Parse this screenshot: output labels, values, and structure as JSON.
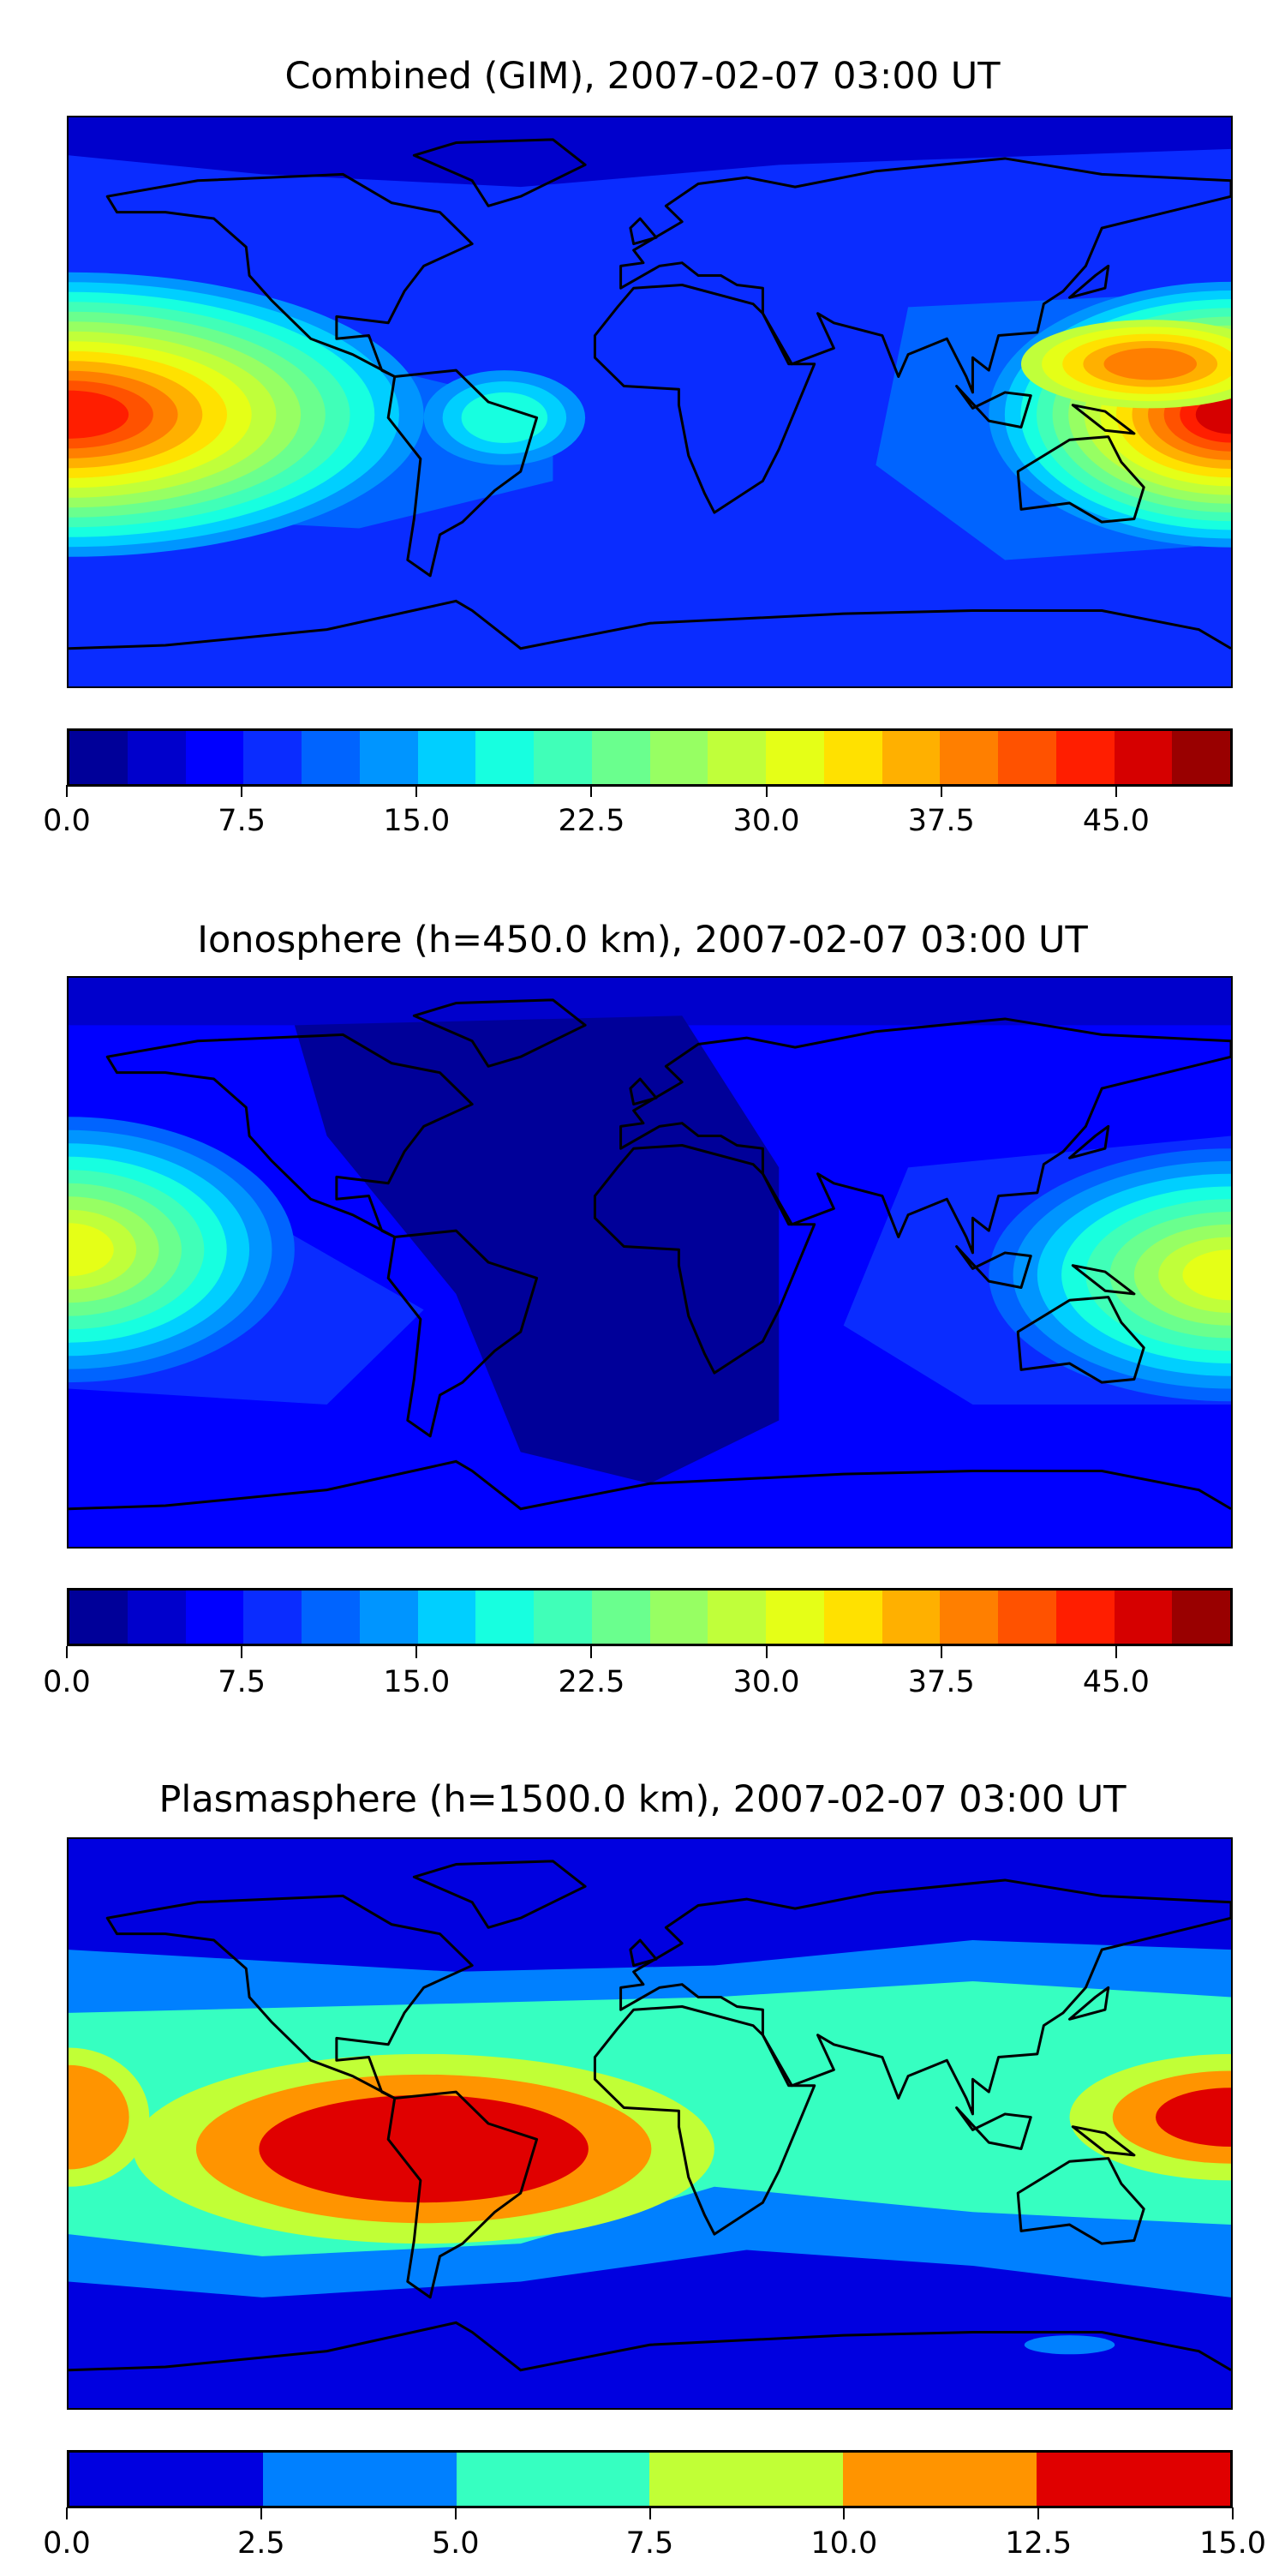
{
  "chart_data": [
    {
      "type": "heatmap",
      "title": "Combined (GIM), 2007-02-07 03:00 UT",
      "projection": "equirectangular world map with coastlines",
      "colorbar": {
        "levels": [
          0,
          2.5,
          5,
          7.5,
          10,
          12.5,
          15,
          17.5,
          20,
          22.5,
          25,
          27.5,
          30,
          32.5,
          35,
          37.5,
          40,
          42.5,
          45,
          47.5,
          50
        ],
        "colors": [
          "#000099",
          "#0000cc",
          "#0000ff",
          "#0a2cff",
          "#0064ff",
          "#0095ff",
          "#00cfff",
          "#17ffe0",
          "#40ffb8",
          "#6aff8e",
          "#97ff63",
          "#c0ff3a",
          "#e5ff17",
          "#ffe100",
          "#ffb000",
          "#ff7f00",
          "#ff5200",
          "#ff1e00",
          "#d60000",
          "#990000"
        ],
        "ticks": [
          "0.0",
          "7.5",
          "15.0",
          "22.5",
          "30.0",
          "37.5",
          "45.0"
        ],
        "tick_values": [
          0,
          7.5,
          15,
          22.5,
          30,
          37.5,
          45
        ],
        "range": [
          0,
          50
        ]
      }
    },
    {
      "type": "heatmap",
      "title": "Ionosphere  (h=450.0 km), 2007-02-07 03:00 UT",
      "projection": "equirectangular world map with coastlines",
      "colorbar": {
        "levels": [
          0,
          2.5,
          5,
          7.5,
          10,
          12.5,
          15,
          17.5,
          20,
          22.5,
          25,
          27.5,
          30,
          32.5,
          35,
          37.5,
          40,
          42.5,
          45,
          47.5,
          50
        ],
        "colors": [
          "#000099",
          "#0000cc",
          "#0000ff",
          "#0a2cff",
          "#0064ff",
          "#0095ff",
          "#00cfff",
          "#17ffe0",
          "#40ffb8",
          "#6aff8e",
          "#97ff63",
          "#c0ff3a",
          "#e5ff17",
          "#ffe100",
          "#ffb000",
          "#ff7f00",
          "#ff5200",
          "#ff1e00",
          "#d60000",
          "#990000"
        ],
        "ticks": [
          "0.0",
          "7.5",
          "15.0",
          "22.5",
          "30.0",
          "37.5",
          "45.0"
        ],
        "tick_values": [
          0,
          7.5,
          15,
          22.5,
          30,
          37.5,
          45
        ],
        "range": [
          0,
          50
        ]
      }
    },
    {
      "type": "heatmap",
      "title": "Plasmasphere (h=1500.0 km), 2007-02-07 03:00 UT",
      "projection": "equirectangular world map with coastlines",
      "colorbar": {
        "levels": [
          0,
          2.5,
          5,
          7.5,
          10,
          12.5,
          15
        ],
        "colors": [
          "#0000e0",
          "#0080ff",
          "#36ffc1",
          "#c1ff36",
          "#ff9400",
          "#e00000"
        ],
        "ticks": [
          "0.0",
          "2.5",
          "5.0",
          "7.5",
          "10.0",
          "12.5",
          "15.0"
        ],
        "tick_values": [
          0,
          2.5,
          5,
          7.5,
          10,
          12.5,
          15
        ],
        "range": [
          0,
          15
        ]
      }
    }
  ]
}
